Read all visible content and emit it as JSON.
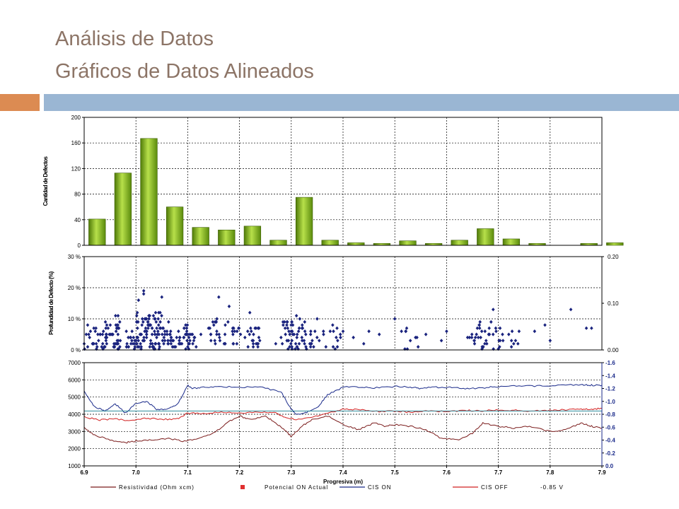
{
  "slide": {
    "title_line1": "Análisis de Datos",
    "title_line2": "Gráficos de Datos Alineados",
    "accent_orange": "#dc8b52",
    "accent_blue": "#9ab6d3"
  },
  "chart_data": [
    {
      "type": "bar",
      "ylabel": "Cantidad de Defectos",
      "ylim": [
        0,
        200
      ],
      "yticks": [
        "0",
        "40",
        "80",
        "120",
        "160",
        "200"
      ],
      "grid": true,
      "bar_color": "#7fb21a",
      "bars": [
        {
          "x": 6.925,
          "value": 41
        },
        {
          "x": 6.975,
          "value": 113
        },
        {
          "x": 7.025,
          "value": 167
        },
        {
          "x": 7.075,
          "value": 60
        },
        {
          "x": 7.125,
          "value": 28
        },
        {
          "x": 7.175,
          "value": 24
        },
        {
          "x": 7.225,
          "value": 30
        },
        {
          "x": 7.275,
          "value": 8
        },
        {
          "x": 7.325,
          "value": 75
        },
        {
          "x": 7.375,
          "value": 8
        },
        {
          "x": 7.425,
          "value": 4
        },
        {
          "x": 7.475,
          "value": 3
        },
        {
          "x": 7.525,
          "value": 7
        },
        {
          "x": 7.575,
          "value": 3
        },
        {
          "x": 7.625,
          "value": 8
        },
        {
          "x": 7.675,
          "value": 26
        },
        {
          "x": 7.725,
          "value": 10
        },
        {
          "x": 7.775,
          "value": 3
        },
        {
          "x": 7.825,
          "value": 0
        },
        {
          "x": 7.875,
          "value": 3
        },
        {
          "x": 7.925,
          "value": 4
        }
      ]
    },
    {
      "type": "scatter",
      "ylabel": "Profundidad de Defecto (%)",
      "ylim": [
        0,
        30
      ],
      "yticks": [
        "0 %",
        "10 %",
        "20 %",
        "30 %"
      ],
      "y2ticks": [
        "0.00",
        "0.10",
        "0.20"
      ],
      "grid": true,
      "marker_color": "#1a237e",
      "clusters": [
        {
          "from": 6.9,
          "to": 6.97,
          "n": 40,
          "ymax": 9
        },
        {
          "from": 6.93,
          "to": 6.97,
          "n": 30,
          "ymax": 11
        },
        {
          "from": 6.98,
          "to": 7.0,
          "n": 18,
          "ymax": 6
        },
        {
          "from": 7.0,
          "to": 7.05,
          "n": 90,
          "ymax": 12
        },
        {
          "from": 7.05,
          "to": 7.1,
          "n": 50,
          "ymax": 9
        },
        {
          "from": 7.1,
          "to": 7.13,
          "n": 15,
          "ymax": 5
        },
        {
          "from": 7.14,
          "to": 7.19,
          "n": 30,
          "ymax": 10
        },
        {
          "from": 7.19,
          "to": 7.24,
          "n": 28,
          "ymax": 8
        },
        {
          "from": 7.28,
          "to": 7.34,
          "n": 60,
          "ymax": 10
        },
        {
          "from": 7.34,
          "to": 7.4,
          "n": 18,
          "ymax": 7
        },
        {
          "from": 7.5,
          "to": 7.55,
          "n": 8,
          "ymax": 7
        },
        {
          "from": 7.64,
          "to": 7.71,
          "n": 40,
          "ymax": 9
        },
        {
          "from": 7.72,
          "to": 7.75,
          "n": 8,
          "ymax": 6
        }
      ],
      "points": [
        [
          7.015,
          19
        ],
        [
          7.015,
          18
        ],
        [
          7.05,
          17
        ],
        [
          7.16,
          17
        ],
        [
          7.18,
          14
        ],
        [
          7.005,
          16
        ],
        [
          7.35,
          10
        ],
        [
          7.38,
          8
        ],
        [
          7.4,
          6
        ],
        [
          7.42,
          4
        ],
        [
          7.45,
          6
        ],
        [
          7.47,
          5
        ],
        [
          7.5,
          10
        ],
        [
          7.54,
          4
        ],
        [
          7.56,
          5
        ],
        [
          7.6,
          6
        ],
        [
          7.77,
          6
        ],
        [
          7.79,
          8
        ],
        [
          7.8,
          3
        ],
        [
          7.84,
          13
        ],
        [
          7.87,
          7
        ],
        [
          7.88,
          7
        ],
        [
          6.9,
          2
        ],
        [
          7.22,
          12
        ],
        [
          7.27,
          2
        ],
        [
          7.31,
          11
        ],
        [
          7.44,
          2
        ],
        [
          7.53,
          3
        ],
        [
          7.59,
          3
        ],
        [
          7.69,
          13
        ]
      ]
    },
    {
      "type": "line",
      "xlabel": "Progresiva (m)",
      "xlim": [
        6.9,
        7.9
      ],
      "xticks": [
        "6.9",
        "7.0",
        "7.1",
        "7.2",
        "7.3",
        "7.4",
        "7.5",
        "7.6",
        "7.7",
        "7.8",
        "7.9"
      ],
      "ylim": [
        1000,
        7000
      ],
      "yticks": [
        "1000",
        "2000",
        "3000",
        "4000",
        "5000",
        "6000",
        "7000"
      ],
      "y2lim": [
        0.0,
        -1.6
      ],
      "y2ticks": [
        "0.0",
        "-0.2",
        "-0.4",
        "-0.6",
        "-0.8",
        "-1.0",
        "-1.2",
        "-1.4",
        "-1.6"
      ],
      "grid": true,
      "legend_position": "bottom",
      "series": [
        {
          "name": "Resistividad (Ohm xcm)",
          "axis": "left",
          "color": "#7b1c1c",
          "x": [
            6.9,
            6.92,
            6.95,
            6.98,
            7.0,
            7.03,
            7.06,
            7.09,
            7.12,
            7.15,
            7.18,
            7.2,
            7.22,
            7.25,
            7.27,
            7.29,
            7.3,
            7.32,
            7.34,
            7.37,
            7.4,
            7.43,
            7.46,
            7.48,
            7.5,
            7.53,
            7.56,
            7.59,
            7.62,
            7.65,
            7.67,
            7.7,
            7.73,
            7.76,
            7.8,
            7.83,
            7.86,
            7.88,
            7.9
          ],
          "y": [
            3200,
            2800,
            2500,
            2350,
            2450,
            2500,
            2600,
            2450,
            2550,
            2900,
            3600,
            3900,
            3700,
            3900,
            3500,
            3000,
            2700,
            3300,
            3700,
            3900,
            3400,
            3100,
            3500,
            3300,
            3400,
            3300,
            3100,
            2600,
            2500,
            2900,
            3500,
            3300,
            3200,
            3300,
            3000,
            3100,
            3500,
            3300,
            3200
          ]
        },
        {
          "name": "Potencial ON Actual",
          "axis": "right",
          "color": "#e03030",
          "marker": "square",
          "x": [],
          "y": []
        },
        {
          "name": "CIS ON",
          "axis": "right",
          "color": "#1a2a8a",
          "x": [
            6.9,
            6.92,
            6.94,
            6.96,
            6.98,
            7.0,
            7.02,
            7.04,
            7.06,
            7.08,
            7.1,
            7.11,
            7.13,
            7.16,
            7.2,
            7.24,
            7.28,
            7.3,
            7.31,
            7.33,
            7.35,
            7.37,
            7.4,
            7.43,
            7.46,
            7.5,
            7.53,
            7.55,
            7.58,
            7.61,
            7.64,
            7.67,
            7.7,
            7.74,
            7.78,
            7.82,
            7.86,
            7.88,
            7.9
          ],
          "y": [
            -1.15,
            -0.92,
            -0.85,
            -0.96,
            -0.82,
            -0.97,
            -1.0,
            -0.88,
            -0.87,
            -0.95,
            -1.25,
            -1.2,
            -1.22,
            -1.23,
            -1.22,
            -1.22,
            -1.15,
            -0.88,
            -0.8,
            -0.83,
            -0.9,
            -1.1,
            -1.22,
            -1.22,
            -1.21,
            -1.23,
            -1.22,
            -1.2,
            -1.22,
            -1.22,
            -1.2,
            -1.21,
            -1.23,
            -1.24,
            -1.24,
            -1.25,
            -1.26,
            -1.25,
            -1.25
          ]
        },
        {
          "name": "CIS OFF",
          "axis": "right",
          "color": "#d02020",
          "x": [
            6.9,
            6.93,
            6.96,
            6.99,
            7.02,
            7.05,
            7.08,
            7.1,
            7.13,
            7.16,
            7.2,
            7.24,
            7.27,
            7.29,
            7.31,
            7.34,
            7.37,
            7.4,
            7.43,
            7.46,
            7.5,
            7.53,
            7.56,
            7.6,
            7.64,
            7.67,
            7.7,
            7.73,
            7.76,
            7.8,
            7.83,
            7.86,
            7.88,
            7.9
          ],
          "y": [
            -0.76,
            -0.71,
            -0.73,
            -0.7,
            -0.74,
            -0.72,
            -0.73,
            -0.82,
            -0.81,
            -0.83,
            -0.82,
            -0.83,
            -0.82,
            -0.75,
            -0.72,
            -0.76,
            -0.82,
            -0.88,
            -0.87,
            -0.84,
            -0.85,
            -0.83,
            -0.85,
            -0.84,
            -0.86,
            -0.85,
            -0.87,
            -0.86,
            -0.85,
            -0.86,
            -0.87,
            -0.88,
            -0.88,
            -0.89
          ]
        },
        {
          "name": "-0.85 V",
          "axis": "right",
          "color": "#2a8a9a",
          "x": [
            6.9,
            7.9
          ],
          "y": [
            -0.85,
            -0.85
          ]
        }
      ]
    }
  ]
}
